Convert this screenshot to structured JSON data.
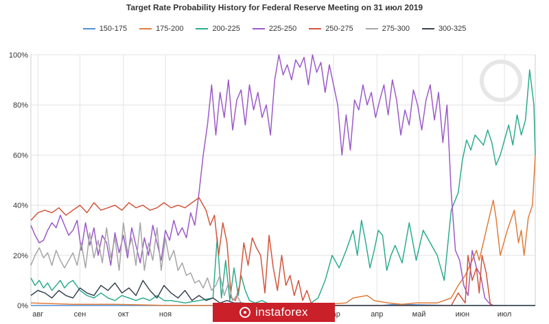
{
  "chart_data": {
    "type": "line",
    "title": "Target Rate Probability History for Federal Reserve Meeting on 31 июл 2019",
    "xlabel": "",
    "ylabel": "",
    "ylim": [
      0,
      100
    ],
    "yticks": [
      "0%",
      "20%",
      "40%",
      "60%",
      "80%",
      "100%"
    ],
    "xticks": [
      {
        "label": "авг",
        "t": 5
      },
      {
        "label": "сен",
        "t": 35
      },
      {
        "label": "окт",
        "t": 66
      },
      {
        "label": "ноя",
        "t": 96
      },
      {
        "label": "мар",
        "t": 216
      },
      {
        "label": "апр",
        "t": 247
      },
      {
        "label": "май",
        "t": 277
      },
      {
        "label": "июн",
        "t": 308
      },
      {
        "label": "июл",
        "t": 338
      }
    ],
    "tmax": 360,
    "grid": true,
    "legend_position": "top",
    "series": [
      {
        "name": "150-175",
        "color": "#4f8fd6",
        "t": [
          0,
          160,
          170,
          175,
          180,
          190,
          200,
          250,
          260,
          300,
          360
        ],
        "values": [
          0,
          0,
          0.5,
          0,
          0.5,
          0,
          0,
          0,
          0.5,
          0,
          0
        ]
      },
      {
        "name": "175-200",
        "color": "#e07b39",
        "t": [
          0,
          30,
          60,
          100,
          150,
          200,
          225,
          230,
          240,
          245,
          255,
          265,
          275,
          290,
          300,
          305,
          310,
          315,
          318,
          320,
          325,
          330,
          332,
          335,
          340,
          345,
          348,
          350,
          352,
          355,
          358,
          360
        ],
        "values": [
          1,
          0.5,
          0.5,
          0,
          0,
          0,
          1,
          3,
          4,
          2,
          1,
          0.5,
          1,
          1,
          3,
          8,
          12,
          18,
          22,
          18,
          30,
          42,
          35,
          20,
          30,
          38,
          25,
          30,
          20,
          35,
          40,
          60
        ]
      },
      {
        "name": "200-225",
        "color": "#2bab8e",
        "t": [
          0,
          3,
          6,
          9,
          12,
          15,
          18,
          21,
          24,
          27,
          30,
          35,
          40,
          45,
          50,
          55,
          60,
          65,
          70,
          75,
          80,
          85,
          90,
          95,
          100,
          110,
          120,
          130,
          133,
          136,
          139,
          142,
          145,
          148,
          150,
          153,
          156,
          160,
          165,
          170,
          180,
          190,
          200,
          205,
          210,
          215,
          220,
          225,
          230,
          233,
          236,
          239,
          242,
          245,
          248,
          251,
          254,
          257,
          260,
          265,
          270,
          275,
          280,
          285,
          290,
          295,
          300,
          305,
          308,
          311,
          314,
          317,
          320,
          323,
          326,
          329,
          332,
          335,
          338,
          341,
          344,
          347,
          350,
          353,
          356,
          359,
          360
        ],
        "values": [
          11,
          8,
          10,
          7,
          9,
          6,
          8,
          10,
          7,
          9,
          10,
          6,
          4,
          3,
          5,
          3,
          2,
          4,
          3,
          2,
          3,
          2,
          4,
          2,
          2,
          1,
          2,
          3,
          27,
          3,
          18,
          2,
          15,
          4,
          12,
          6,
          2,
          1,
          2,
          0.5,
          0,
          0,
          1,
          3,
          10,
          20,
          15,
          22,
          30,
          20,
          34,
          25,
          15,
          22,
          30,
          28,
          14,
          20,
          24,
          17,
          33,
          18,
          30,
          25,
          20,
          10,
          38,
          45,
          58,
          66,
          62,
          68,
          66,
          64,
          70,
          65,
          56,
          60,
          66,
          72,
          64,
          76,
          68,
          74,
          94,
          80,
          60
        ]
      },
      {
        "name": "225-250",
        "color": "#9b59c9",
        "t": [
          0,
          3,
          6,
          9,
          12,
          15,
          18,
          21,
          24,
          27,
          30,
          33,
          36,
          39,
          42,
          45,
          48,
          51,
          54,
          57,
          60,
          63,
          66,
          69,
          72,
          75,
          78,
          81,
          84,
          87,
          90,
          93,
          96,
          99,
          102,
          105,
          108,
          111,
          114,
          117,
          120,
          123,
          126,
          129,
          132,
          135,
          138,
          141,
          144,
          147,
          150,
          153,
          156,
          159,
          162,
          165,
          168,
          171,
          174,
          177,
          180,
          183,
          186,
          189,
          192,
          195,
          198,
          201,
          204,
          207,
          210,
          213,
          216,
          219,
          222,
          225,
          228,
          231,
          234,
          237,
          240,
          243,
          246,
          249,
          252,
          255,
          258,
          261,
          264,
          267,
          270,
          273,
          276,
          279,
          282,
          285,
          288,
          291,
          294,
          297,
          300,
          303,
          306,
          309,
          312,
          315,
          318,
          321,
          324,
          327,
          330
        ],
        "values": [
          32,
          28,
          25,
          26,
          30,
          33,
          31,
          36,
          32,
          28,
          30,
          34,
          22,
          33,
          24,
          31,
          20,
          28,
          25,
          16,
          29,
          21,
          28,
          19,
          31,
          24,
          17,
          27,
          20,
          32,
          25,
          18,
          30,
          26,
          34,
          28,
          31,
          27,
          37,
          32,
          45,
          60,
          72,
          88,
          68,
          85,
          75,
          90,
          70,
          82,
          86,
          72,
          88,
          78,
          85,
          75,
          80,
          68,
          90,
          100,
          92,
          96,
          90,
          98,
          95,
          99,
          88,
          100,
          93,
          97,
          85,
          96,
          88,
          80,
          60,
          76,
          62,
          82,
          78,
          88,
          80,
          85,
          75,
          82,
          88,
          76,
          90,
          82,
          68,
          78,
          72,
          86,
          80,
          70,
          82,
          88,
          74,
          85,
          65,
          80,
          45,
          22,
          18,
          8,
          4,
          22,
          15,
          12,
          3,
          1,
          0
        ]
      },
      {
        "name": "250-275",
        "color": "#d2543a",
        "t": [
          0,
          5,
          10,
          15,
          20,
          25,
          30,
          35,
          40,
          45,
          50,
          55,
          60,
          65,
          70,
          75,
          80,
          85,
          90,
          95,
          100,
          105,
          110,
          115,
          120,
          125,
          128,
          131,
          134,
          137,
          140,
          143,
          146,
          149,
          152,
          155,
          158,
          161,
          164,
          167,
          170,
          173,
          176,
          179,
          182,
          185,
          188,
          191,
          194,
          197,
          200,
          210,
          230,
          260,
          300,
          305,
          310,
          312,
          315,
          318,
          320,
          322,
          325,
          328,
          330,
          335
        ],
        "values": [
          34,
          37,
          38,
          37,
          39,
          36,
          38,
          40,
          37,
          41,
          38,
          39,
          40,
          38,
          41,
          39,
          40,
          38,
          39,
          41,
          39,
          40,
          39,
          41,
          43,
          38,
          32,
          36,
          20,
          33,
          25,
          3,
          2,
          8,
          25,
          16,
          27,
          23,
          20,
          5,
          28,
          15,
          6,
          20,
          8,
          12,
          4,
          10,
          2,
          6,
          1,
          0,
          0,
          0,
          0,
          5,
          1,
          20,
          10,
          15,
          5,
          20,
          13,
          0,
          0,
          0
        ]
      },
      {
        "name": "275-300",
        "color": "#a5a5a5",
        "t": [
          0,
          3,
          6,
          9,
          12,
          15,
          18,
          21,
          24,
          27,
          30,
          33,
          36,
          39,
          42,
          45,
          48,
          51,
          54,
          57,
          60,
          63,
          66,
          69,
          72,
          75,
          78,
          81,
          84,
          87,
          90,
          93,
          96,
          99,
          102,
          105,
          108,
          111,
          114,
          117,
          120,
          123,
          126,
          129,
          132,
          135,
          138,
          141,
          144,
          147,
          150,
          160,
          170,
          180,
          200,
          230,
          260,
          300,
          360
        ],
        "values": [
          16,
          20,
          23,
          19,
          21,
          16,
          22,
          18,
          15,
          18,
          21,
          16,
          25,
          15,
          29,
          19,
          26,
          17,
          31,
          19,
          27,
          14,
          33,
          21,
          27,
          16,
          33,
          14,
          25,
          18,
          31,
          14,
          27,
          18,
          22,
          14,
          17,
          12,
          13,
          9,
          10,
          7,
          11,
          6,
          8,
          12,
          4,
          9,
          2,
          4,
          1,
          0.5,
          0,
          0,
          0,
          0,
          0,
          0,
          0
        ]
      },
      {
        "name": "300-325",
        "color": "#37424f",
        "t": [
          0,
          5,
          10,
          15,
          20,
          25,
          30,
          35,
          40,
          45,
          50,
          55,
          60,
          65,
          70,
          75,
          80,
          85,
          90,
          95,
          100,
          105,
          110,
          115,
          120,
          125,
          130,
          135,
          140,
          145,
          150,
          170,
          200,
          260,
          300,
          360
        ],
        "values": [
          4,
          6,
          5,
          3,
          6,
          4,
          3,
          7,
          5,
          4,
          8,
          6,
          9,
          5,
          7,
          4,
          10,
          6,
          3,
          8,
          5,
          3,
          6,
          2,
          4,
          2,
          3,
          1,
          2,
          1,
          1,
          0,
          0,
          0,
          0,
          0
        ]
      }
    ]
  },
  "watermark": {
    "text": "instaforex"
  }
}
